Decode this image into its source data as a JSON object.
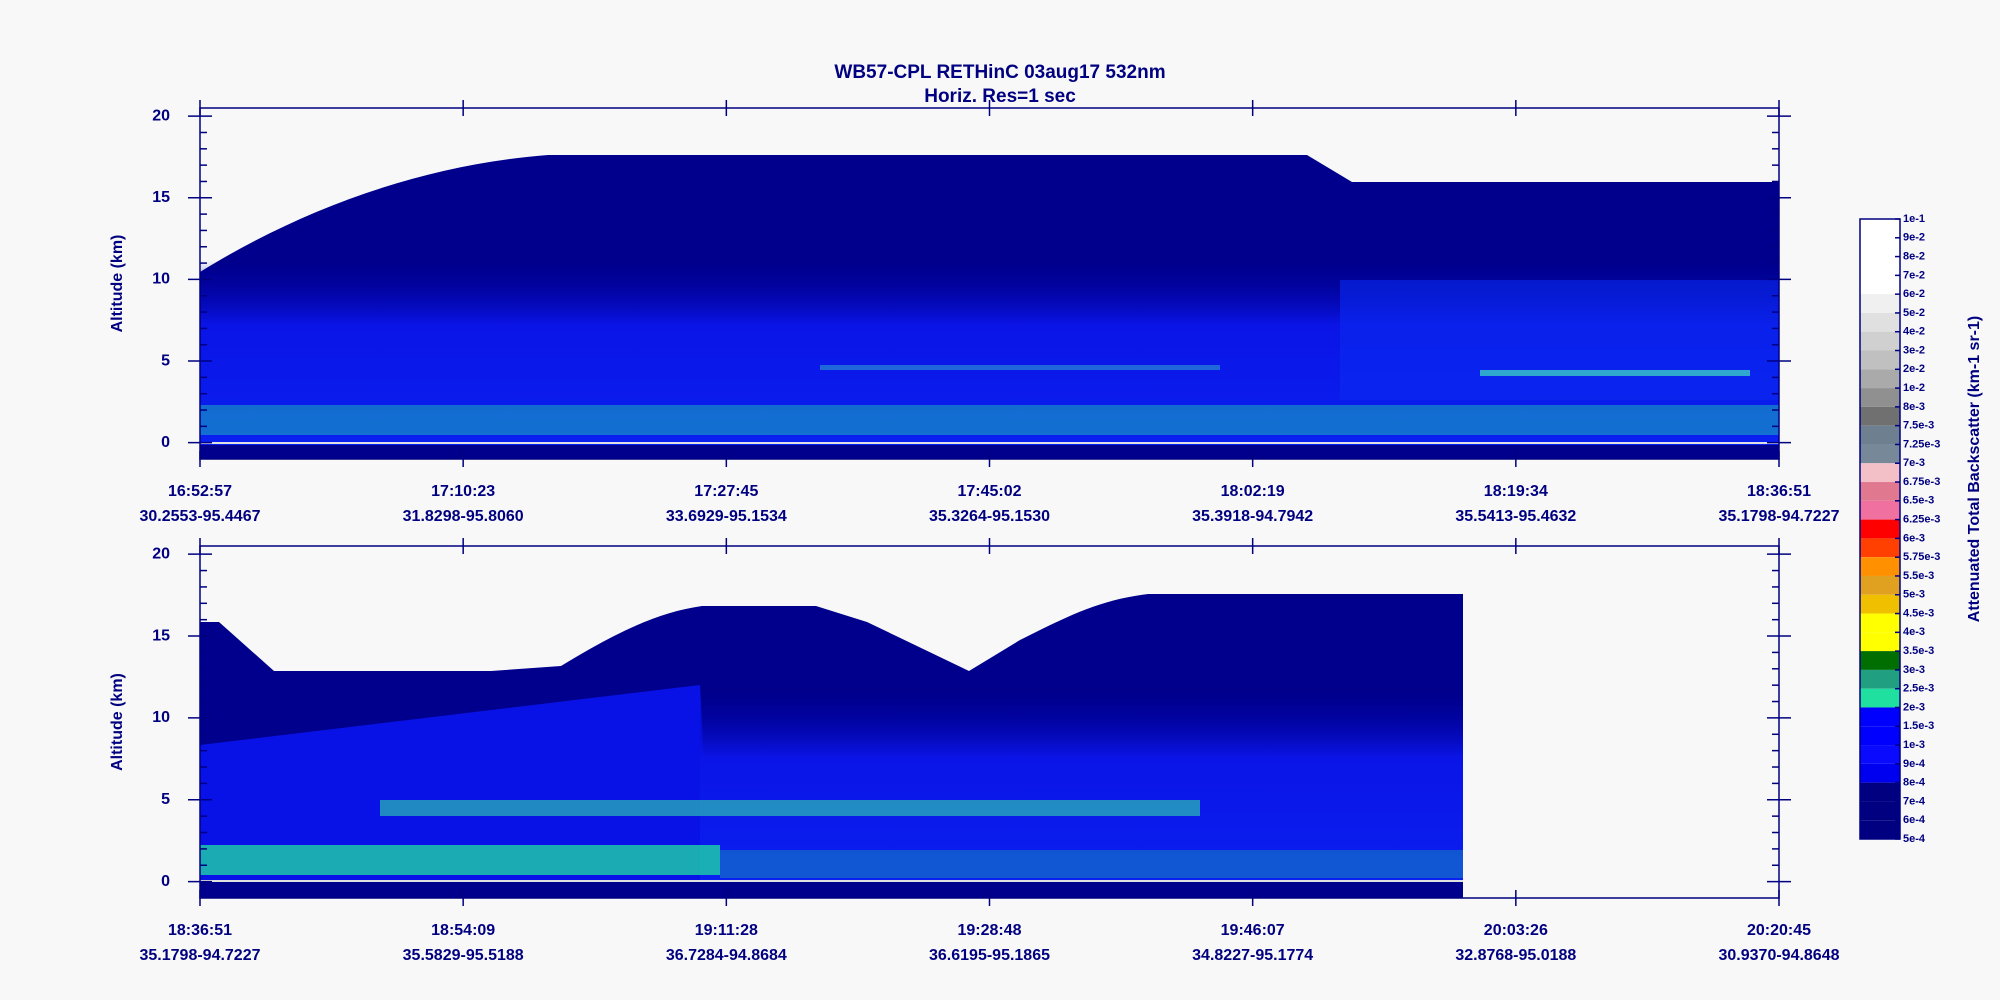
{
  "title": "WB57-CPL  RETHinC  03aug17  532nm",
  "subtitle": "Horiz. Res=1 sec",
  "chart_data": [
    {
      "type": "curtain",
      "ylabel": "Altitude (km)",
      "categories": [
        "16:52:57",
        "17:10:23",
        "17:27:45",
        "17:45:02",
        "18:02:19",
        "18:19:34",
        "18:36:51"
      ],
      "locations": [
        "30.2553-95.4467",
        "31.8298-95.8060",
        "33.6929-95.1534",
        "35.3264-95.1530",
        "35.3918-94.7942",
        "35.5413-95.4632",
        "35.1798-94.7227"
      ],
      "ylim": [
        -1,
        20.5
      ],
      "yticks": [
        0,
        5,
        10,
        15,
        20
      ]
    },
    {
      "type": "curtain",
      "ylabel": "Altitude (km)",
      "categories": [
        "18:36:51",
        "18:54:09",
        "19:11:28",
        "19:28:48",
        "19:46:07",
        "20:03:26",
        "20:20:45"
      ],
      "locations": [
        "35.1798-94.7227",
        "35.5829-95.5188",
        "36.7284-94.8684",
        "36.6195-95.1865",
        "34.8227-95.1774",
        "32.8768-95.0188",
        "30.9370-94.8648"
      ],
      "ylim": [
        -1,
        20.5
      ],
      "yticks": [
        0,
        5,
        10,
        15,
        20
      ]
    }
  ],
  "colorbar": {
    "label": "Attenuated Total Backscatter (km-1 sr-1)",
    "ticks": [
      {
        "value": 0.1,
        "label": "1e-1"
      },
      {
        "value": 0.09,
        "label": "9e-2"
      },
      {
        "value": 0.08,
        "label": "8e-2"
      },
      {
        "value": 0.07,
        "label": "7e-2"
      },
      {
        "value": 0.06,
        "label": "6e-2"
      },
      {
        "value": 0.05,
        "label": "5e-2"
      },
      {
        "value": 0.04,
        "label": "4e-2"
      },
      {
        "value": 0.03,
        "label": "3e-2"
      },
      {
        "value": 0.02,
        "label": "2e-2"
      },
      {
        "value": 0.01,
        "label": "1e-2"
      },
      {
        "value": 0.008,
        "label": "8e-3"
      },
      {
        "value": 0.0075,
        "label": "7.5e-3"
      },
      {
        "value": 0.00725,
        "label": "7.25e-3"
      },
      {
        "value": 0.007,
        "label": "7e-3"
      },
      {
        "value": 0.00675,
        "label": "6.75e-3"
      },
      {
        "value": 0.0065,
        "label": "6.5e-3"
      },
      {
        "value": 0.00625,
        "label": "6.25e-3"
      },
      {
        "value": 0.006,
        "label": "6e-3"
      },
      {
        "value": 0.00575,
        "label": "5.75e-3"
      },
      {
        "value": 0.0055,
        "label": "5.5e-3"
      },
      {
        "value": 0.005,
        "label": "5e-3"
      },
      {
        "value": 0.0045,
        "label": "4.5e-3"
      },
      {
        "value": 0.004,
        "label": "4e-3"
      },
      {
        "value": 0.0035,
        "label": "3.5e-3"
      },
      {
        "value": 0.003,
        "label": "3e-3"
      },
      {
        "value": 0.0025,
        "label": "2.5e-3"
      },
      {
        "value": 0.002,
        "label": "2e-3"
      },
      {
        "value": 0.0015,
        "label": "1.5e-3"
      },
      {
        "value": 0.001,
        "label": "1e-3"
      },
      {
        "value": 0.0009,
        "label": "9e-4"
      },
      {
        "value": 0.0008,
        "label": "8e-4"
      },
      {
        "value": 0.0007,
        "label": "7e-4"
      },
      {
        "value": 0.0006,
        "label": "6e-4"
      },
      {
        "value": 0.0005,
        "label": "5e-4"
      }
    ],
    "colors": [
      "#ffffff",
      "#ffffff",
      "#ffffff",
      "#ffffff",
      "#f0f0f0",
      "#e0e0e0",
      "#d0d0d0",
      "#c0c0c0",
      "#aaaaaa",
      "#909090",
      "#707070",
      "#6e8090",
      "#778899",
      "#f4c0c8",
      "#e07890",
      "#f070a0",
      "#ff0000",
      "#ff4000",
      "#ff9000",
      "#e0a020",
      "#f0c000",
      "#ffff00",
      "#ffff00",
      "#006e00",
      "#20a080",
      "#20e0a0",
      "#0000ff",
      "#0000ff",
      "#0a0aff",
      "#0000f0",
      "#000080",
      "#000080",
      "#000080"
    ]
  }
}
